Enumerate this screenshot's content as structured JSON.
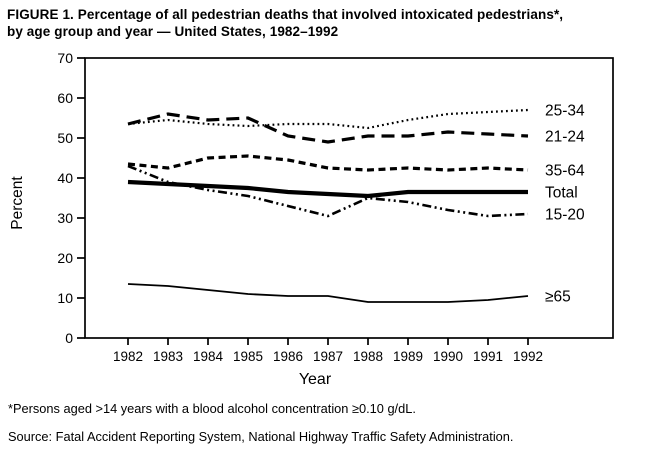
{
  "figure": {
    "title_line1": "FIGURE 1. Percentage of all pedestrian deaths that involved intoxicated pedestrians*,",
    "title_line2": "by age group and year — United States, 1982–1992",
    "footnote": "*Persons aged >14 years with a blood alcohol concentration ≥0.10 g/dL.",
    "source": "Source: Fatal Accident Reporting System, National Highway Traffic Safety Administration."
  },
  "chart_data": {
    "type": "line",
    "title": "FIGURE 1. Percentage of all pedestrian deaths that involved intoxicated pedestrians, by age group and year — United States, 1982–1992",
    "xlabel": "Year",
    "ylabel": "Percent",
    "x": [
      1982,
      1983,
      1984,
      1985,
      1986,
      1987,
      1988,
      1989,
      1990,
      1991,
      1992
    ],
    "ylim": [
      0,
      70
    ],
    "ytick_step": 10,
    "grid": false,
    "line_color": "#000000",
    "legend_position": "labels-at-line-ends-right",
    "series": [
      {
        "name": "25-34",
        "line_style": "dotted",
        "thickness": 2.2,
        "values": [
          53.5,
          54.5,
          53.5,
          53,
          53.5,
          53.5,
          52.5,
          54.5,
          56,
          56.5,
          57
        ]
      },
      {
        "name": "21-24",
        "line_style": "long-dash",
        "thickness": 3.2,
        "values": [
          53.5,
          56,
          54.5,
          55,
          50.5,
          49,
          50.5,
          50.5,
          51.5,
          51,
          50.5
        ]
      },
      {
        "name": "35-64",
        "line_style": "dash",
        "thickness": 3.2,
        "values": [
          43.5,
          42.5,
          45,
          45.5,
          44.5,
          42.5,
          42,
          42.5,
          42,
          42.5,
          42
        ]
      },
      {
        "name": "Total",
        "line_style": "solid",
        "thickness": 4.2,
        "values": [
          39,
          38.5,
          38,
          37.5,
          36.5,
          36,
          35.5,
          36.5,
          36.5,
          36.5,
          36.5
        ]
      },
      {
        "name": "15-20",
        "line_style": "dash-dot-dot",
        "thickness": 2.6,
        "values": [
          43,
          39,
          37,
          35.5,
          33,
          30.5,
          35,
          34,
          32,
          30.5,
          31
        ]
      },
      {
        "name": "≥65",
        "line_style": "solid",
        "thickness": 1.8,
        "values": [
          13.5,
          13,
          12,
          11,
          10.5,
          10.5,
          9,
          9,
          9,
          9.5,
          10.5
        ]
      }
    ]
  }
}
